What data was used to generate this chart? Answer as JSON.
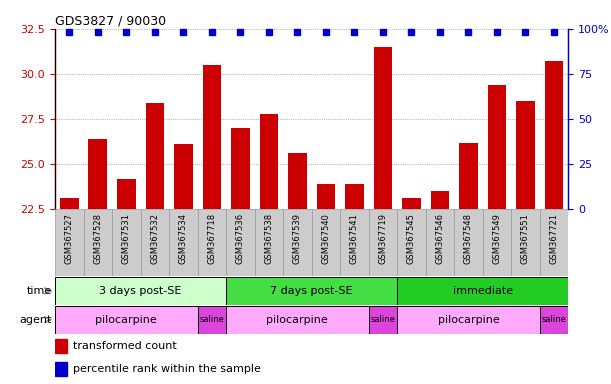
{
  "title": "GDS3827 / 90030",
  "samples": [
    "GSM367527",
    "GSM367528",
    "GSM367531",
    "GSM367532",
    "GSM367534",
    "GSM367718",
    "GSM367536",
    "GSM367538",
    "GSM367539",
    "GSM367540",
    "GSM367541",
    "GSM367719",
    "GSM367545",
    "GSM367546",
    "GSM367548",
    "GSM367549",
    "GSM367551",
    "GSM367721"
  ],
  "bar_values": [
    23.1,
    26.4,
    24.2,
    28.4,
    26.1,
    30.5,
    27.0,
    27.8,
    25.6,
    23.9,
    23.9,
    31.5,
    23.1,
    23.5,
    26.2,
    29.4,
    28.5,
    30.7
  ],
  "bar_color": "#cc0000",
  "percentile_color": "#0000cc",
  "ylim_left": [
    22.5,
    32.5
  ],
  "ylim_right": [
    0,
    100
  ],
  "yticks_left": [
    22.5,
    25.0,
    27.5,
    30.0,
    32.5
  ],
  "yticks_right": [
    0,
    25,
    50,
    75,
    100
  ],
  "time_groups": [
    {
      "label": "3 days post-SE",
      "start": 0,
      "end": 5,
      "color": "#ccffcc"
    },
    {
      "label": "7 days post-SE",
      "start": 6,
      "end": 11,
      "color": "#44dd44"
    },
    {
      "label": "immediate",
      "start": 12,
      "end": 17,
      "color": "#22cc22"
    }
  ],
  "agent_groups": [
    {
      "label": "pilocarpine",
      "start": 0,
      "end": 4,
      "color": "#ffaaff"
    },
    {
      "label": "saline",
      "start": 5,
      "end": 5,
      "color": "#dd44dd"
    },
    {
      "label": "pilocarpine",
      "start": 6,
      "end": 10,
      "color": "#ffaaff"
    },
    {
      "label": "saline",
      "start": 11,
      "end": 11,
      "color": "#dd44dd"
    },
    {
      "label": "pilocarpine",
      "start": 12,
      "end": 16,
      "color": "#ffaaff"
    },
    {
      "label": "saline",
      "start": 17,
      "end": 17,
      "color": "#dd44dd"
    }
  ],
  "legend_bar_label": "transformed count",
  "legend_pct_label": "percentile rank within the sample",
  "bg_color": "#ffffff",
  "left_axis_color": "#cc0000",
  "right_axis_color": "#0000cc",
  "xlabel_time": "time",
  "xlabel_agent": "agent",
  "grid_color": "#777777",
  "sample_bg_color": "#cccccc",
  "sample_border_color": "#999999"
}
